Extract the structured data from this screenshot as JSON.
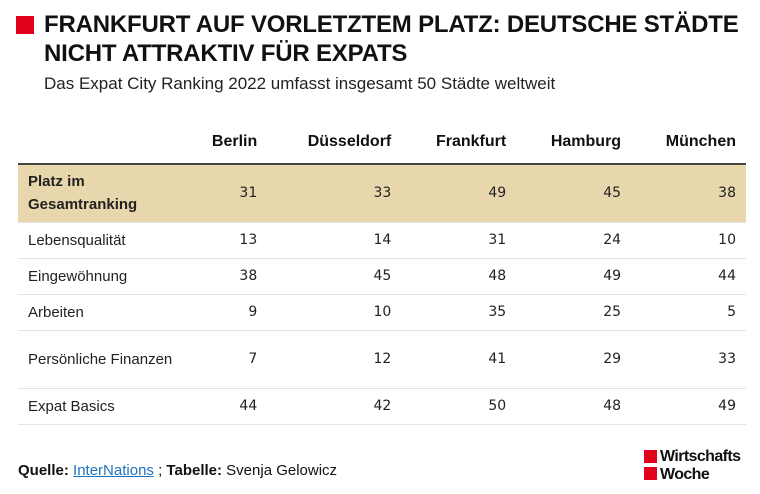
{
  "title": "FRANKFURT AUF VORLETZTEM PLATZ: DEUTSCHE STÄDTE NICHT ATTRAKTIV FÜR EXPATS",
  "subtitle": "Das Expat City Ranking 2022 umfasst insgesamt 50 Städte weltweit",
  "accent_color": "#e3001b",
  "highlight_color": "#e8d7ac",
  "chart_data": {
    "type": "table",
    "title": "FRANKFURT AUF VORLETZTEM PLATZ: DEUTSCHE STÄDTE NICHT ATTRAKTIV FÜR EXPATS",
    "subtitle": "Das Expat City Ranking 2022 umfasst insgesamt 50 Städte weltweit",
    "columns": [
      "",
      "Berlin",
      "Düsseldorf",
      "Frankfurt",
      "Hamburg",
      "München"
    ],
    "rows": [
      {
        "label": "Platz im Gesamtranking",
        "values": [
          "31",
          "33",
          "49",
          "45",
          "38"
        ],
        "highlight": true
      },
      {
        "label": "Lebensqualität",
        "values": [
          "13",
          "14",
          "31",
          "24",
          "10"
        ]
      },
      {
        "label": "Eingewöhnung",
        "values": [
          "38",
          "45",
          "48",
          "49",
          "44"
        ]
      },
      {
        "label": "Arbeiten",
        "values": [
          "9",
          "10",
          "35",
          "25",
          "5"
        ]
      },
      {
        "label": "Persönliche Finanzen",
        "values": [
          "7",
          "12",
          "41",
          "29",
          "33"
        ]
      },
      {
        "label": "Expat Basics",
        "values": [
          "44",
          "42",
          "50",
          "48",
          "49"
        ]
      }
    ]
  },
  "footer": {
    "source_label": "Quelle:",
    "source_link": "InterNations",
    "separator": ";",
    "table_label": "Tabelle:",
    "author": "Svenja Gelowicz"
  },
  "logo": {
    "line1": "Wirtschafts",
    "line2": "Woche"
  }
}
